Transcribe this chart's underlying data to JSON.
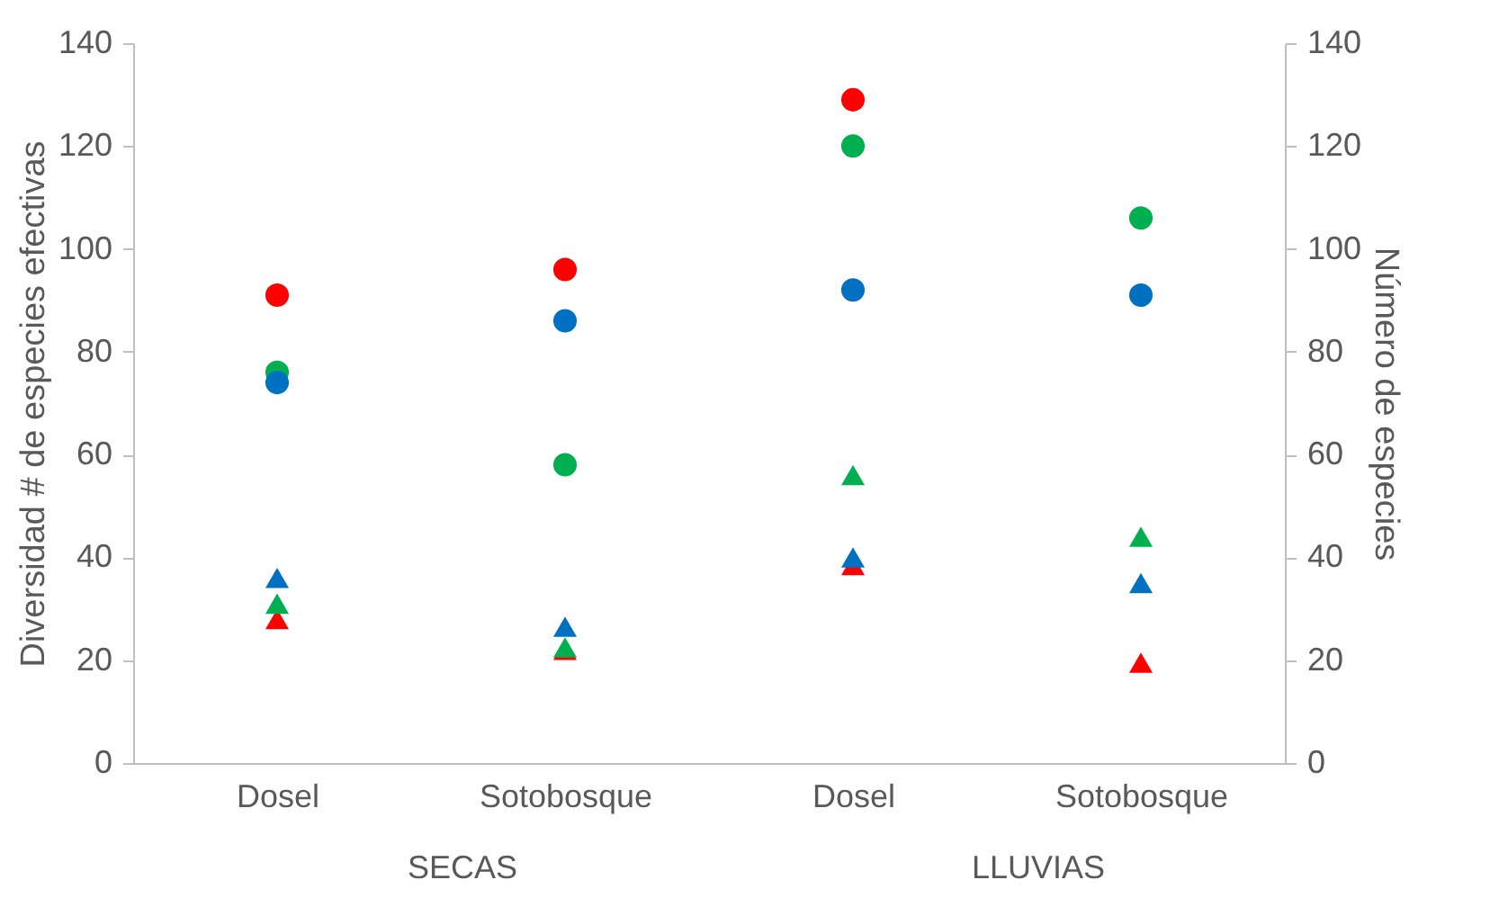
{
  "chart_data": {
    "type": "scatter",
    "categories": [
      "Dosel",
      "Sotobosque",
      "Dosel",
      "Sotobosque"
    ],
    "ylabel": "Diversidad # de especies efectivas",
    "y2label": "Número de especies",
    "ylim": [
      0,
      140
    ],
    "yticks": [
      0,
      20,
      40,
      60,
      80,
      100,
      120,
      140
    ],
    "y2lim": [
      0,
      140
    ],
    "y2ticks": [
      0,
      20,
      40,
      60,
      80,
      100,
      120,
      140
    ],
    "grid": false,
    "legend": false,
    "annotations": [
      "SECAS",
      "LLUVIAS"
    ],
    "series": [
      {
        "color": "#ff0000",
        "marker": "triangle",
        "values": [
          28,
          22,
          38.5,
          19.5
        ]
      },
      {
        "color": "#00b050",
        "marker": "triangle",
        "values": [
          31,
          22.5,
          56,
          44
        ]
      },
      {
        "color": "#0070c0",
        "marker": "triangle",
        "values": [
          36,
          26.5,
          40,
          35
        ]
      },
      {
        "color": "#ff0000",
        "marker": "circle",
        "axis": "y2",
        "values": [
          91,
          96,
          129,
          null
        ]
      },
      {
        "color": "#00b050",
        "marker": "circle",
        "axis": "y2",
        "values": [
          76,
          58,
          120,
          106
        ]
      },
      {
        "color": "#0070c0",
        "marker": "circle",
        "axis": "y2",
        "values": [
          74,
          86,
          92,
          91
        ]
      }
    ]
  }
}
